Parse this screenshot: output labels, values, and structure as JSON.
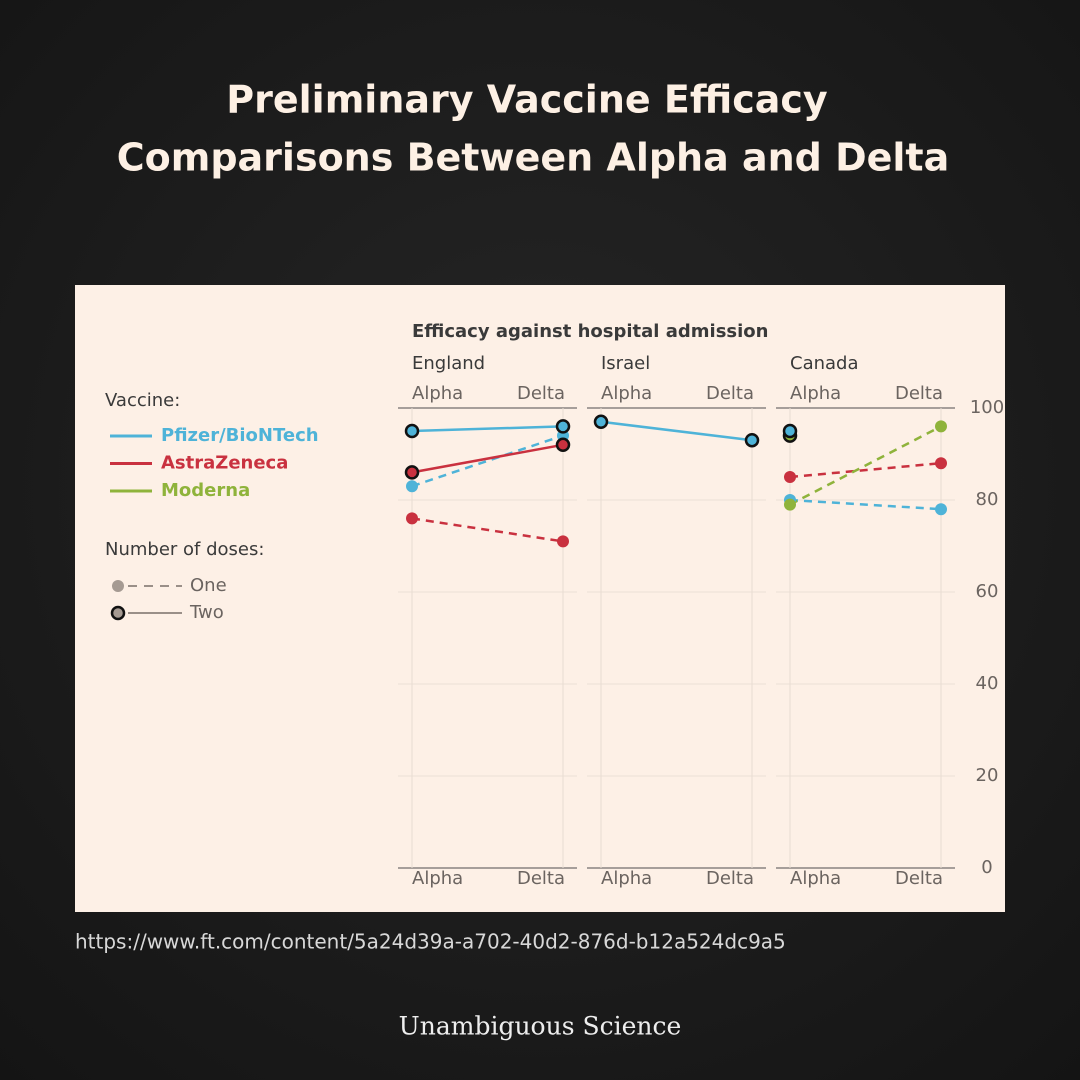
{
  "title": [
    "Preliminary Vaccine Efficacy",
    "Comparisons Between Alpha and Delta"
  ],
  "source": "https://www.ft.com/content/5a24d39a-a702-40d2-876d-b12a524dc9a5",
  "footer": "Unambiguous Science",
  "chart_data": {
    "type": "line",
    "title": "Efficacy against hospital admission",
    "ylim": [
      0,
      100
    ],
    "yticks": [
      0,
      20,
      40,
      60,
      80,
      100
    ],
    "grid": true,
    "legend": {
      "title": "Vaccine:",
      "items": [
        {
          "name": "Pfizer/BioNTech",
          "color": "#4eb3d8"
        },
        {
          "name": "AstraZeneca",
          "color": "#c9313f"
        },
        {
          "name": "Moderna",
          "color": "#8fb33b"
        }
      ]
    },
    "doses_legend": {
      "title": "Number of doses:",
      "items": [
        "One",
        "Two"
      ]
    },
    "panels": [
      {
        "title": "England",
        "categories": [
          "Alpha",
          "Delta"
        ],
        "series": [
          {
            "name": "AstraZeneca",
            "doses": "One",
            "values": [
              76,
              71
            ]
          },
          {
            "name": "Pfizer/BioNTech",
            "doses": "One",
            "values": [
              83,
              94
            ]
          },
          {
            "name": "AstraZeneca",
            "doses": "Two",
            "values": [
              86,
              92
            ]
          },
          {
            "name": "Pfizer/BioNTech",
            "doses": "Two",
            "values": [
              95,
              96
            ]
          }
        ]
      },
      {
        "title": "Israel",
        "categories": [
          "Alpha",
          "Delta"
        ],
        "series": [
          {
            "name": "Pfizer/BioNTech",
            "doses": "Two",
            "values": [
              97,
              93
            ]
          }
        ]
      },
      {
        "title": "Canada",
        "categories": [
          "Alpha",
          "Delta"
        ],
        "series": [
          {
            "name": "AstraZeneca",
            "doses": "One",
            "values": [
              85,
              88
            ]
          },
          {
            "name": "Pfizer/BioNTech",
            "doses": "One",
            "values": [
              80,
              78
            ]
          },
          {
            "name": "Moderna",
            "doses": "One",
            "values": [
              79,
              96
            ]
          },
          {
            "name": "Moderna",
            "doses": "Two",
            "values": [
              94,
              null
            ]
          },
          {
            "name": "Pfizer/BioNTech",
            "doses": "Two",
            "values": [
              95,
              null
            ]
          }
        ]
      }
    ]
  }
}
